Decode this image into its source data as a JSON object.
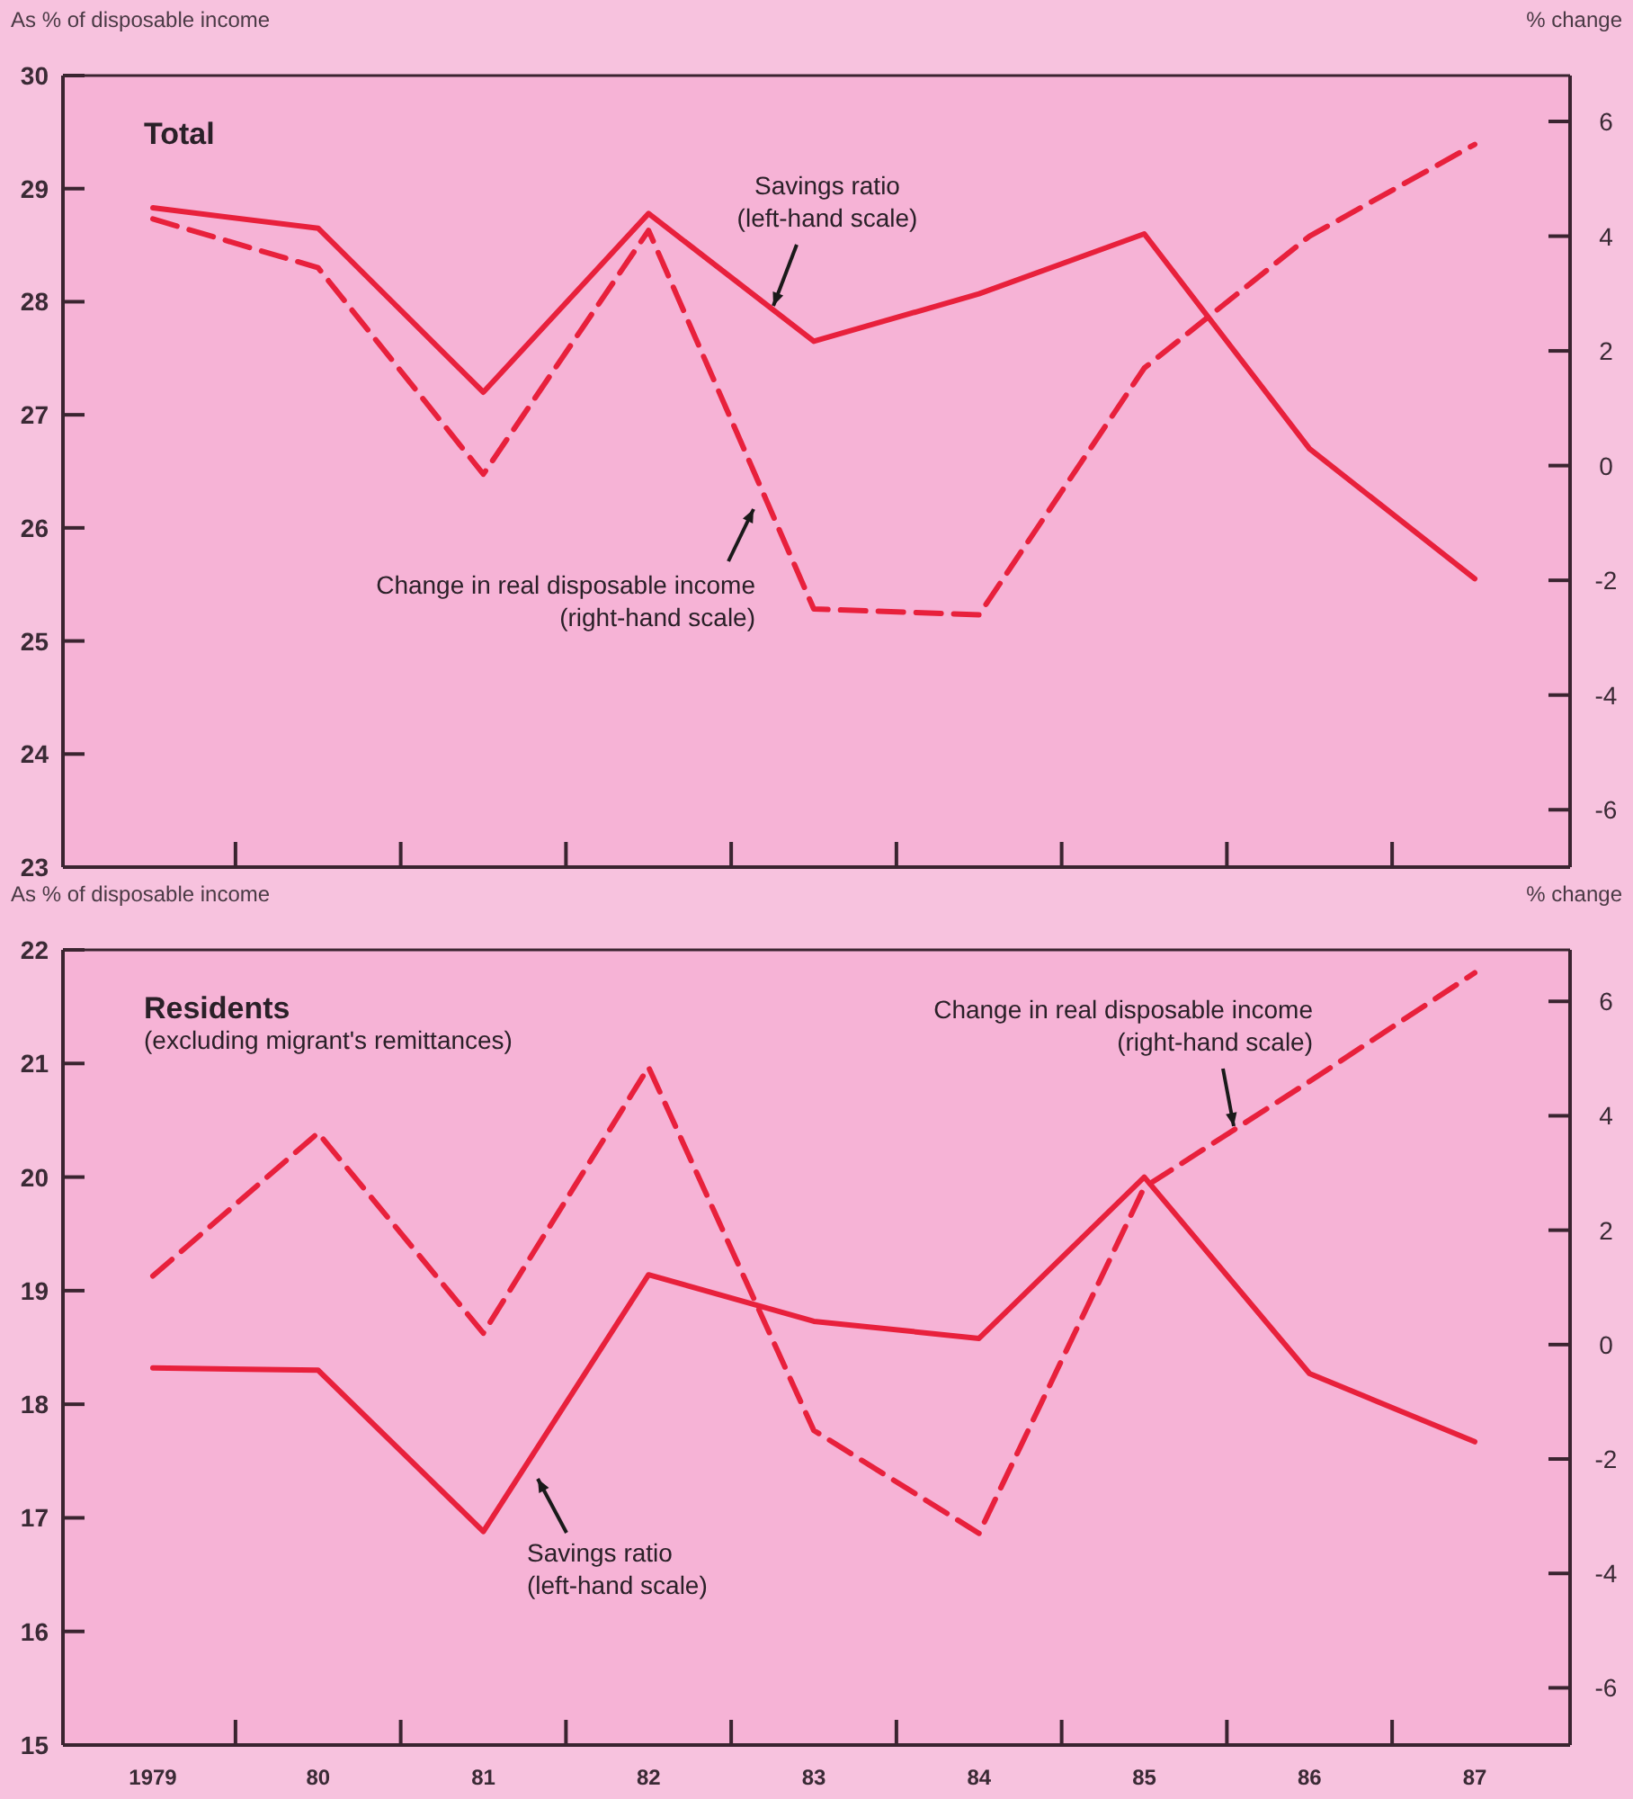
{
  "chart_data": [
    {
      "type": "line",
      "title": "Total",
      "ylabel": "As % of disposable income",
      "y2label": "% change",
      "categories": [
        "1979",
        "80",
        "81",
        "82",
        "83",
        "84",
        "85",
        "86",
        "87"
      ],
      "ylim": [
        23,
        30
      ],
      "yticks": [
        23,
        24,
        25,
        26,
        27,
        28,
        29,
        30
      ],
      "y2lim": [
        -7,
        6.8
      ],
      "y2ticks": [
        -6,
        -4,
        -2,
        0,
        2,
        4,
        6
      ],
      "tick_labels": "y",
      "grid": false,
      "series": [
        {
          "name": "Savings ratio (left-hand scale)",
          "color": "#e8203c",
          "line_style": "solid",
          "values": [
            28.83,
            28.65,
            27.2,
            28.78,
            27.65,
            28.07,
            28.6,
            26.7,
            25.55
          ]
        },
        {
          "name": "Change in real disposable income (right-hand scale)",
          "color": "#e8203c",
          "line_style": "dashed",
          "axis": "y2",
          "values": [
            4.3,
            3.45,
            -0.15,
            4.1,
            -2.5,
            -2.6,
            1.7,
            4.0,
            5.6
          ]
        }
      ]
    },
    {
      "type": "line",
      "title": "Residents",
      "subtitle": "(excluding migrant's remittances)",
      "ylabel": "As % of disposable income",
      "y2label": "% change",
      "categories": [
        "1979",
        "80",
        "81",
        "82",
        "83",
        "84",
        "85",
        "86",
        "87"
      ],
      "ylim": [
        15,
        22
      ],
      "yticks": [
        15,
        16,
        17,
        18,
        19,
        20,
        21,
        22
      ],
      "y2lim": [
        -7,
        6.9
      ],
      "y2ticks": [
        -6,
        -4,
        -2,
        0,
        2,
        4,
        6
      ],
      "grid": false,
      "series": [
        {
          "name": "Savings ratio (left-hand scale)",
          "color": "#e8203c",
          "line_style": "solid",
          "values": [
            18.32,
            18.3,
            16.88,
            19.14,
            18.73,
            18.58,
            20.0,
            18.27,
            17.67
          ]
        },
        {
          "name": "Change in real disposable income (right-hand scale)",
          "color": "#e8203c",
          "line_style": "dashed",
          "axis": "y2",
          "values": [
            1.2,
            3.7,
            0.2,
            4.85,
            -1.5,
            -3.3,
            2.75,
            4.6,
            6.5
          ]
        }
      ]
    }
  ]
}
